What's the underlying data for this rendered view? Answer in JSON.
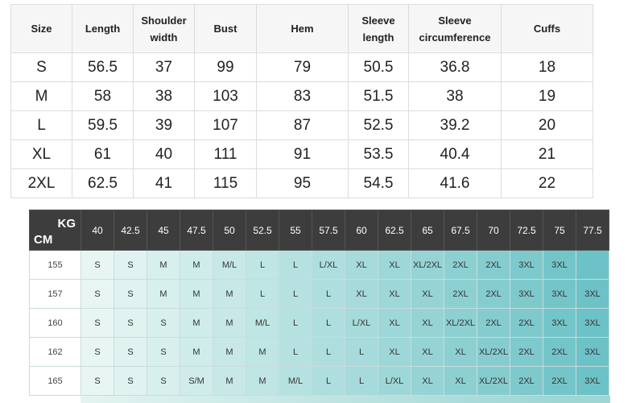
{
  "size_table": {
    "headers": [
      "Size",
      "Length",
      "Shoulder width",
      "Bust",
      "Hem",
      "Sleeve length",
      "Sleeve circumference",
      "Cuffs"
    ],
    "rows": [
      [
        "S",
        56.5,
        37,
        99,
        79,
        50.5,
        36.8,
        18
      ],
      [
        "M",
        58,
        38,
        103,
        83,
        51.5,
        38,
        19
      ],
      [
        "L",
        59.5,
        39,
        107,
        87,
        52.5,
        39.2,
        20
      ],
      [
        "XL",
        61,
        40,
        111,
        91,
        53.5,
        40.4,
        21
      ],
      [
        "2XL",
        62.5,
        41,
        115,
        95,
        54.5,
        41.6,
        22
      ]
    ]
  },
  "recommend_table": {
    "kg_label": "KG",
    "cm_label": "CM",
    "weights": [
      40,
      42.5,
      45,
      47.5,
      50,
      52.5,
      55,
      57.5,
      60,
      62.5,
      65,
      67.5,
      70,
      72.5,
      75,
      77.5
    ],
    "rows": [
      {
        "height": 155,
        "sizes": [
          "S",
          "S",
          "M",
          "M",
          "M/L",
          "L",
          "L",
          "L/XL",
          "XL",
          "XL",
          "XL/2XL",
          "2XL",
          "2XL",
          "3XL",
          "3XL",
          null
        ]
      },
      {
        "height": 157,
        "sizes": [
          "S",
          "S",
          "M",
          "M",
          "M",
          "L",
          "L",
          "L",
          "XL",
          "XL",
          "XL",
          "2XL",
          "2XL",
          "3XL",
          "3XL",
          "3XL"
        ]
      },
      {
        "height": 160,
        "sizes": [
          "S",
          "S",
          "S",
          "M",
          "M",
          "M/L",
          "L",
          "L",
          "L/XL",
          "XL",
          "XL",
          "XL/2XL",
          "2XL",
          "2XL",
          "3XL",
          "3XL"
        ]
      },
      {
        "height": 162,
        "sizes": [
          "S",
          "S",
          "S",
          "M",
          "M",
          "M",
          "L",
          "L",
          "L",
          "XL",
          "XL",
          "XL",
          "XL/2XL",
          "2XL",
          "2XL",
          "3XL"
        ]
      },
      {
        "height": 165,
        "sizes": [
          "S",
          "S",
          "S",
          "S/M",
          "M",
          "M",
          "M/L",
          "L",
          "L",
          "L/XL",
          "XL",
          "XL",
          "XL/2XL",
          "2XL",
          "2XL",
          "3XL"
        ]
      }
    ]
  }
}
